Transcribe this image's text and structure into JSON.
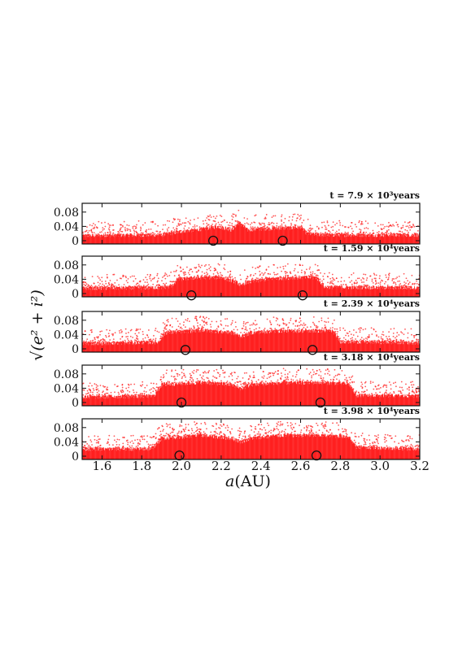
{
  "chart_data": {
    "type": "scatter",
    "xlabel_italic": "a",
    "xlabel_unit": "(AU)",
    "ylabel": "√(e² + i²)",
    "xlim": [
      1.5,
      3.2
    ],
    "xticks": [
      "1.6",
      "1.8",
      "2.0",
      "2.2",
      "2.4",
      "2.6",
      "2.8",
      "3.0",
      "3.2"
    ],
    "ylim": [
      0,
      0.1
    ],
    "yticks": [
      "0",
      "0.04",
      "0.08"
    ],
    "point_color": "#ff2020",
    "marker_color": "#111111",
    "panels": [
      {
        "time_label": "t = 7.9 × 10³years",
        "band_profile": [
          [
            1.5,
            0.014
          ],
          [
            1.9,
            0.016
          ],
          [
            2.0,
            0.026
          ],
          [
            2.1,
            0.032
          ],
          [
            2.18,
            0.04
          ],
          [
            2.25,
            0.03
          ],
          [
            2.29,
            0.05
          ],
          [
            2.33,
            0.03
          ],
          [
            2.4,
            0.033
          ],
          [
            2.55,
            0.036
          ],
          [
            2.6,
            0.038
          ],
          [
            2.63,
            0.02
          ],
          [
            2.7,
            0.016
          ],
          [
            3.2,
            0.016
          ]
        ],
        "markers": [
          {
            "a": 2.16,
            "value": 0.0
          },
          {
            "a": 2.51,
            "value": 0.0
          }
        ]
      },
      {
        "time_label": "t = 1.59 × 10⁴years",
        "band_profile": [
          [
            1.5,
            0.015
          ],
          [
            1.88,
            0.016
          ],
          [
            1.95,
            0.02
          ],
          [
            1.98,
            0.04
          ],
          [
            2.1,
            0.045
          ],
          [
            2.2,
            0.045
          ],
          [
            2.28,
            0.03
          ],
          [
            2.3,
            0.02
          ],
          [
            2.32,
            0.03
          ],
          [
            2.45,
            0.042
          ],
          [
            2.6,
            0.045
          ],
          [
            2.68,
            0.044
          ],
          [
            2.72,
            0.018
          ],
          [
            3.2,
            0.016
          ]
        ],
        "markers": [
          {
            "a": 2.05,
            "value": -0.005
          },
          {
            "a": 2.61,
            "value": -0.005
          }
        ]
      },
      {
        "time_label": "t = 2.39 × 10⁴years",
        "band_profile": [
          [
            1.5,
            0.015
          ],
          [
            1.88,
            0.018
          ],
          [
            1.92,
            0.045
          ],
          [
            2.1,
            0.052
          ],
          [
            2.25,
            0.045
          ],
          [
            2.3,
            0.035
          ],
          [
            2.35,
            0.045
          ],
          [
            2.5,
            0.05
          ],
          [
            2.7,
            0.05
          ],
          [
            2.76,
            0.05
          ],
          [
            2.8,
            0.02
          ],
          [
            3.2,
            0.017
          ]
        ],
        "markers": [
          {
            "a": 2.02,
            "value": -0.003
          },
          {
            "a": 2.66,
            "value": -0.003
          }
        ]
      },
      {
        "time_label": "t = 3.18 × 10⁴years",
        "band_profile": [
          [
            1.5,
            0.015
          ],
          [
            1.86,
            0.018
          ],
          [
            1.9,
            0.05
          ],
          [
            2.1,
            0.056
          ],
          [
            2.25,
            0.05
          ],
          [
            2.3,
            0.038
          ],
          [
            2.35,
            0.05
          ],
          [
            2.5,
            0.055
          ],
          [
            2.7,
            0.056
          ],
          [
            2.84,
            0.052
          ],
          [
            2.88,
            0.02
          ],
          [
            3.2,
            0.018
          ]
        ],
        "markers": [
          {
            "a": 2.0,
            "value": 0.0
          },
          {
            "a": 2.7,
            "value": 0.0
          }
        ]
      },
      {
        "time_label": "t = 3.98 × 10⁴years",
        "band_profile": [
          [
            1.5,
            0.02
          ],
          [
            1.85,
            0.02
          ],
          [
            1.9,
            0.05
          ],
          [
            2.1,
            0.058
          ],
          [
            2.25,
            0.05
          ],
          [
            2.3,
            0.04
          ],
          [
            2.35,
            0.05
          ],
          [
            2.5,
            0.058
          ],
          [
            2.7,
            0.058
          ],
          [
            2.84,
            0.055
          ],
          [
            2.88,
            0.025
          ],
          [
            3.2,
            0.02
          ]
        ],
        "markers": [
          {
            "a": 1.99,
            "value": 0.002
          },
          {
            "a": 2.68,
            "value": 0.002
          }
        ]
      }
    ]
  }
}
